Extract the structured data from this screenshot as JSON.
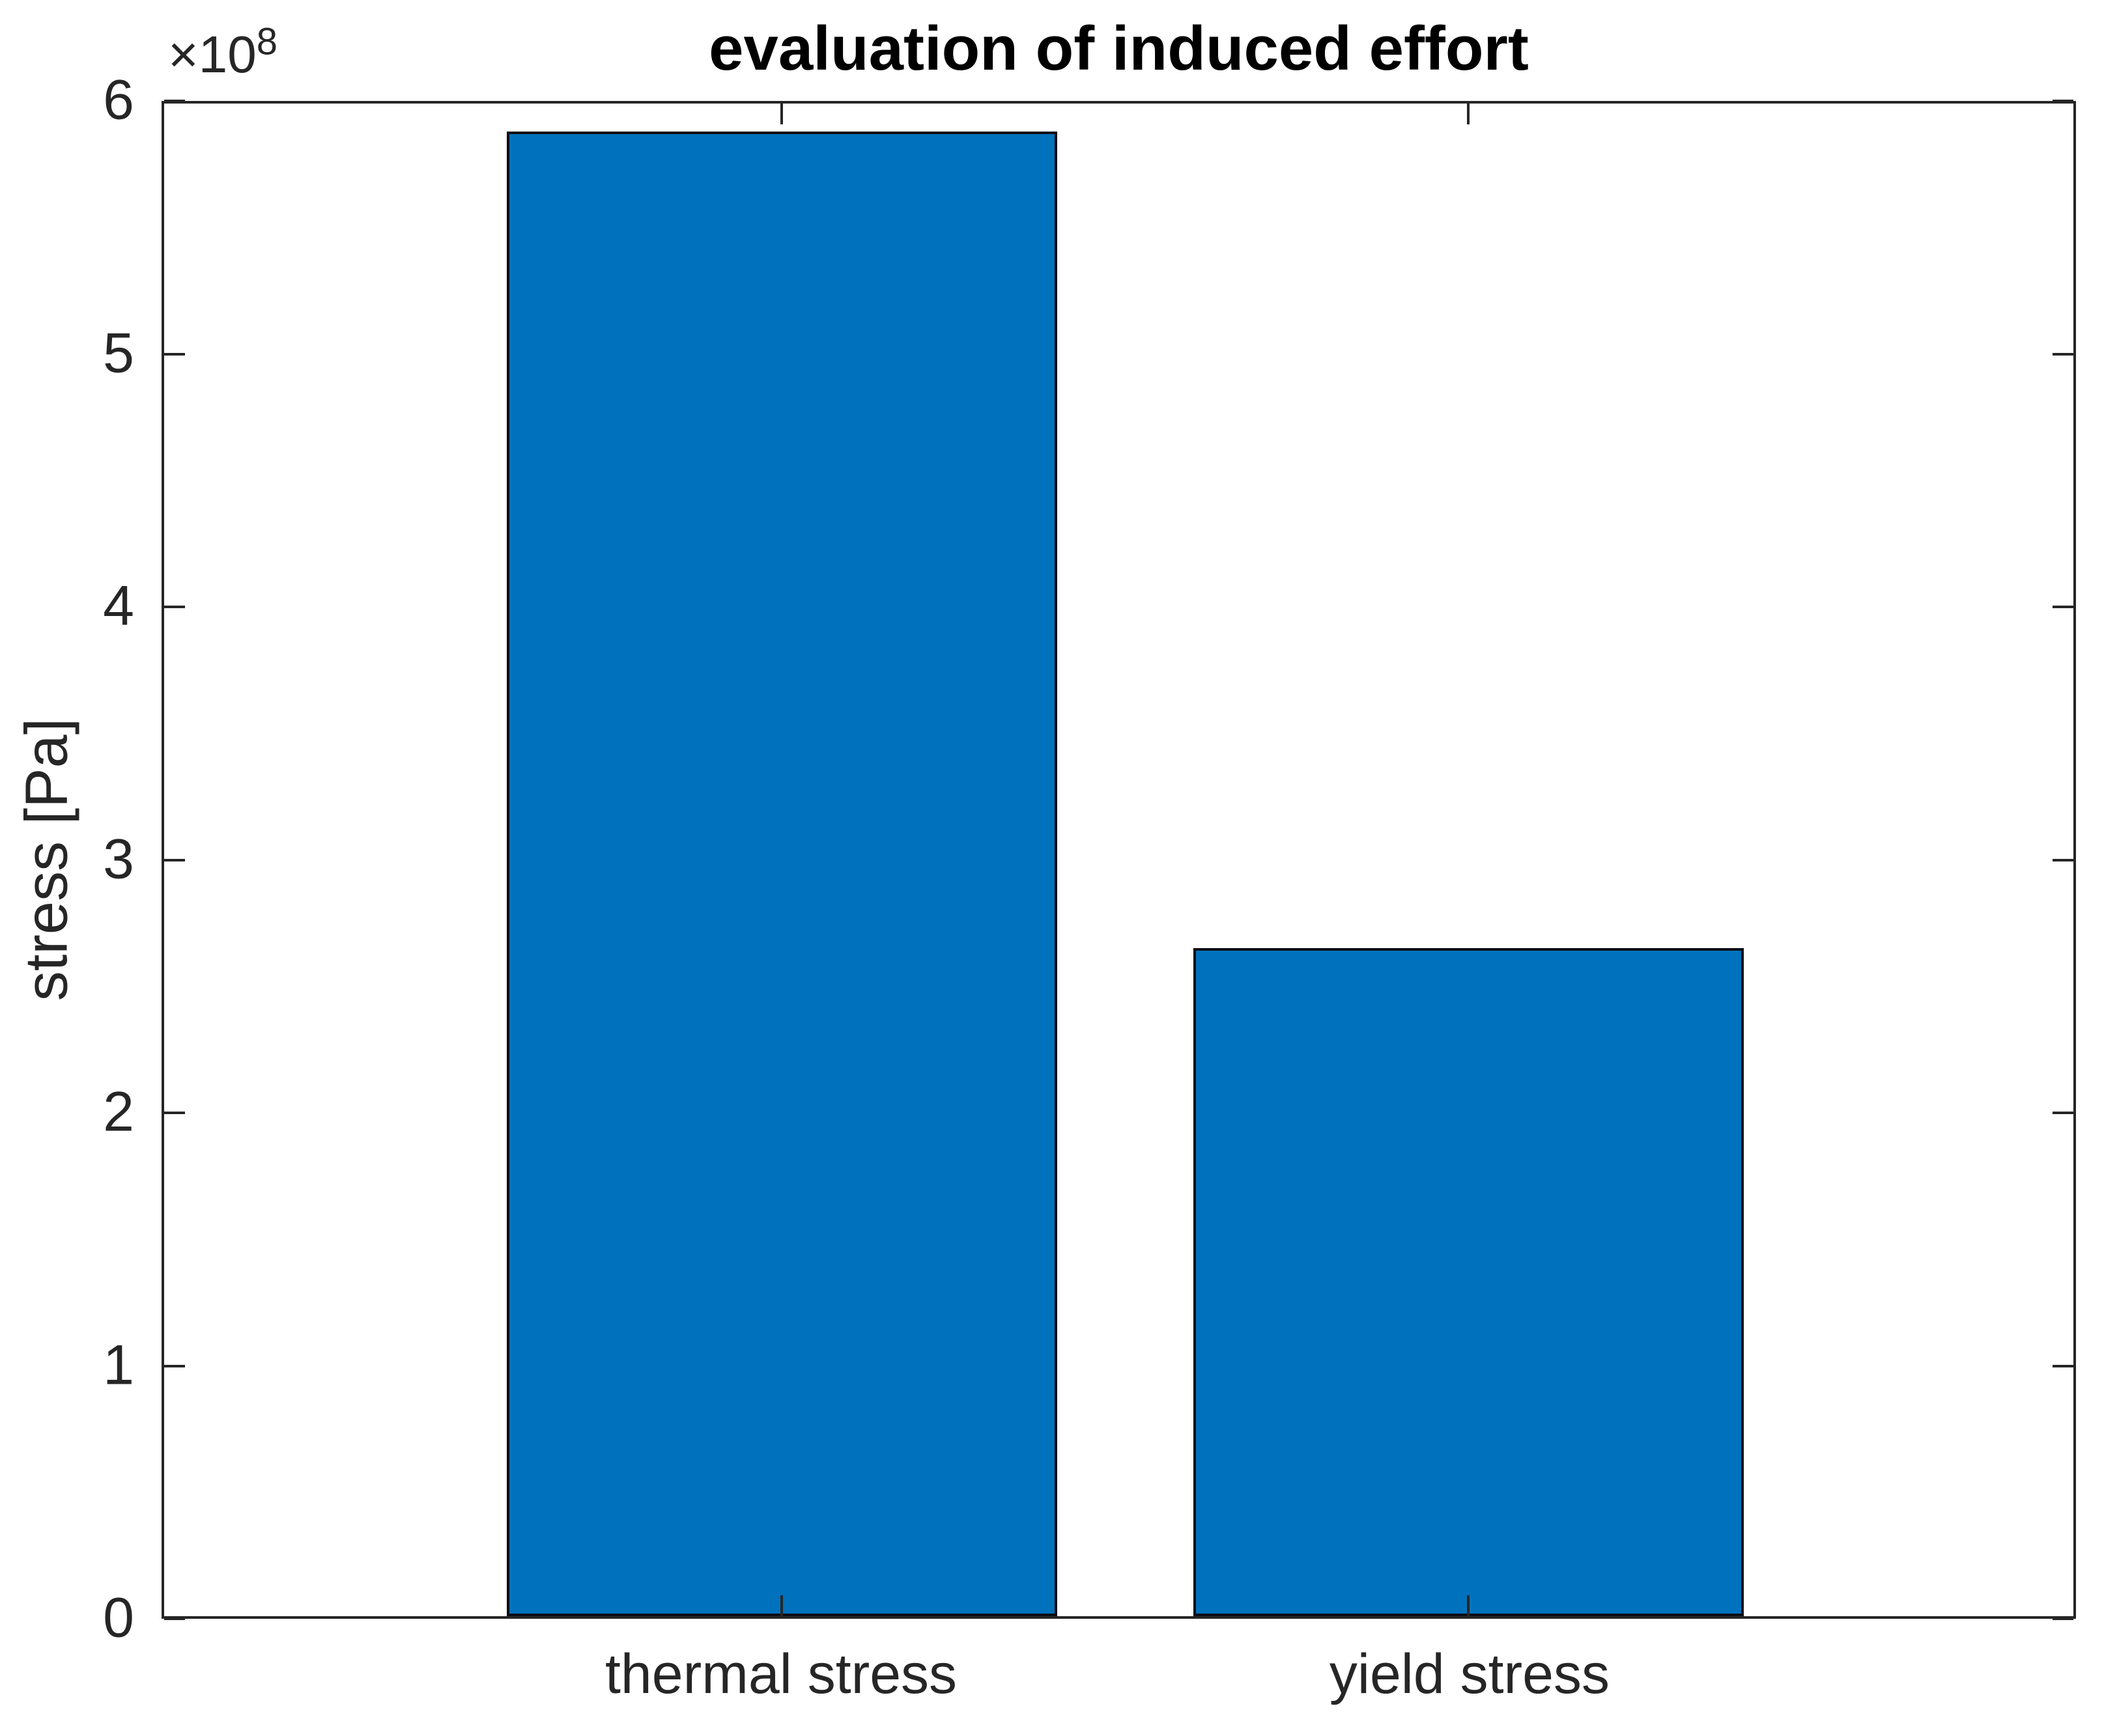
{
  "figure": {
    "background_color": "#ffffff"
  },
  "chart_data": {
    "type": "bar",
    "title": "evaluation of induced effort",
    "xlabel": "",
    "ylabel": "stress [Pa]",
    "categories": [
      "thermal stress",
      "yield stress"
    ],
    "values": [
      589000000,
      265000000
    ],
    "values_readable": [
      "5.89e8 Pa",
      "2.65e8 Pa"
    ],
    "ylim": [
      0,
      600000000
    ],
    "yticks": [
      0,
      100000000,
      200000000,
      300000000,
      400000000,
      500000000,
      600000000
    ],
    "ytick_labels": [
      "0",
      "1",
      "2",
      "3",
      "4",
      "5",
      "6"
    ],
    "y_exponent": {
      "base": "×10",
      "power": "8"
    },
    "grid": false,
    "legend": false,
    "colors": {
      "bar_fill": "#0072BD",
      "bar_edge": "#0d0d14",
      "axis": "#262626",
      "title_text": "#000000",
      "tick_text": "#262626"
    },
    "layout": {
      "box": true,
      "tick_direction": "in",
      "bar_centers_frac": [
        0.3236,
        0.6832
      ],
      "bar_width_frac": 0.288,
      "legend_position": "none"
    }
  }
}
